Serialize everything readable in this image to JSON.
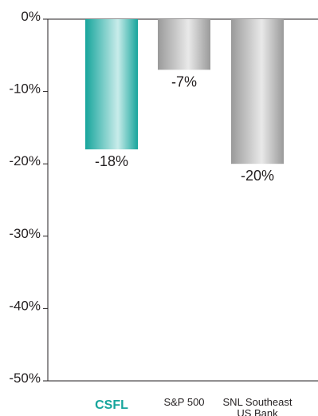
{
  "chart_data": {
    "type": "bar",
    "categories": [
      [
        "CSFL"
      ],
      [
        "S&P 500"
      ],
      [
        "SNL Southeast",
        "US Bank"
      ]
    ],
    "category_names": [
      "CSFL",
      "S&P 500",
      "SNL Southeast US Bank"
    ],
    "values": [
      -18,
      -7,
      -20
    ],
    "data_labels": [
      "-18%",
      "-7%",
      "-20%"
    ],
    "ylim": [
      -50,
      0
    ],
    "yticks": [
      0,
      -10,
      -20,
      -30,
      -40,
      -50
    ],
    "ytick_labels": [
      "0%",
      "-10%",
      "-20%",
      "-30%",
      "-40%",
      "-50%"
    ],
    "title": "",
    "xlabel": "",
    "ylabel": "",
    "grid": false,
    "highlight_index": 0,
    "colors": {
      "highlight_dark": "#17a59c",
      "highlight_light": "#c8ecea",
      "bar_dark": "#9a9a9a",
      "bar_light": "#e9e9e9",
      "highlight_label": "#17a59c",
      "text": "#231f20",
      "axis": "#231f20"
    }
  }
}
